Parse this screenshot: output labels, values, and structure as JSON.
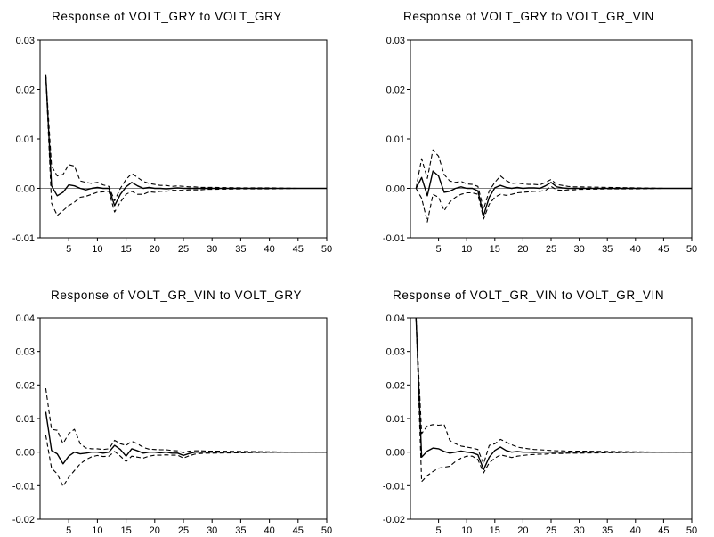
{
  "chart_data": [
    {
      "type": "line",
      "title": "Response of VOLT_GRY to VOLT_GRY",
      "ylim": [
        -0.01,
        0.03
      ],
      "yticks": [
        -0.01,
        0.0,
        0.01,
        0.02,
        0.03
      ],
      "ytick_labels": [
        "-0.01",
        "0.00",
        "0.01",
        "0.02",
        "0.03"
      ],
      "xlim": [
        0,
        50
      ],
      "xticks": [
        5,
        10,
        15,
        20,
        25,
        30,
        35,
        40,
        45,
        50
      ],
      "grid": false,
      "series": [
        {
          "role": "response",
          "style": "solid",
          "x": [
            1,
            2,
            3,
            4,
            5,
            6,
            7,
            8,
            9,
            10,
            11,
            12,
            13,
            14,
            15,
            16,
            17,
            18,
            19,
            20,
            21,
            22,
            23,
            24,
            25,
            26,
            27,
            28,
            29,
            30,
            35,
            40,
            45,
            50
          ],
          "y": [
            0.023,
            0.0005,
            -0.0015,
            -0.0008,
            0.0007,
            0.0005,
            0.0,
            -0.0003,
            0.0,
            0.0002,
            0.0,
            0.0,
            -0.0035,
            -0.0012,
            0.0003,
            0.0012,
            0.0005,
            0.0,
            0.0002,
            0.0,
            0.0,
            -0.0001,
            0.0,
            0.0001,
            0.0,
            0.0,
            0.0,
            0.0,
            0.0,
            0.0,
            0.0,
            0.0,
            0.0,
            0.0
          ]
        },
        {
          "role": "upper band",
          "style": "dashed",
          "x": [
            1,
            2,
            3,
            4,
            5,
            6,
            7,
            8,
            9,
            10,
            11,
            12,
            13,
            14,
            15,
            16,
            17,
            18,
            19,
            20,
            21,
            22,
            23,
            24,
            25,
            26,
            27,
            28,
            29,
            30,
            35,
            40,
            45,
            50
          ],
          "y": [
            0.023,
            0.0045,
            0.0025,
            0.0028,
            0.0048,
            0.0045,
            0.0015,
            0.0012,
            0.001,
            0.0012,
            0.0007,
            0.0004,
            -0.0025,
            0.0,
            0.0018,
            0.003,
            0.0022,
            0.0014,
            0.001,
            0.0008,
            0.0006,
            0.0006,
            0.0004,
            0.0005,
            0.0004,
            0.0003,
            0.0003,
            0.0002,
            0.0002,
            0.0002,
            0.0001,
            0.0001,
            0.0,
            0.0
          ]
        },
        {
          "role": "lower band",
          "style": "dashed",
          "x": [
            1,
            2,
            3,
            4,
            5,
            6,
            7,
            8,
            9,
            10,
            11,
            12,
            13,
            14,
            15,
            16,
            17,
            18,
            19,
            20,
            21,
            22,
            23,
            24,
            25,
            26,
            27,
            28,
            29,
            30,
            35,
            40,
            45,
            50
          ],
          "y": [
            0.023,
            -0.003,
            -0.0055,
            -0.0045,
            -0.0035,
            -0.0028,
            -0.0018,
            -0.0016,
            -0.0012,
            -0.0008,
            -0.0007,
            -0.0006,
            -0.0048,
            -0.0028,
            -0.0012,
            -0.0006,
            -0.0012,
            -0.0012,
            -0.0007,
            -0.0008,
            -0.0006,
            -0.0006,
            -0.0004,
            -0.0004,
            -0.0004,
            -0.0003,
            -0.0003,
            -0.0003,
            -0.0002,
            -0.0002,
            -0.0001,
            -0.0001,
            0.0,
            0.0
          ]
        }
      ]
    },
    {
      "type": "line",
      "title": "Response of VOLT_GRY to VOLT_GR_VIN",
      "ylim": [
        -0.01,
        0.03
      ],
      "yticks": [
        -0.01,
        0.0,
        0.01,
        0.02,
        0.03
      ],
      "ytick_labels": [
        "-0.01",
        "0.00",
        "0.01",
        "0.02",
        "0.03"
      ],
      "xlim": [
        0,
        50
      ],
      "xticks": [
        5,
        10,
        15,
        20,
        25,
        30,
        35,
        40,
        45,
        50
      ],
      "grid": false,
      "series": [
        {
          "role": "response",
          "style": "solid",
          "x": [
            1,
            2,
            3,
            4,
            5,
            6,
            7,
            8,
            9,
            10,
            11,
            12,
            13,
            14,
            15,
            16,
            17,
            18,
            19,
            20,
            21,
            22,
            23,
            24,
            25,
            26,
            27,
            28,
            29,
            30,
            35,
            40,
            45,
            50
          ],
          "y": [
            0.0,
            0.0022,
            -0.0015,
            0.0035,
            0.0025,
            -0.0008,
            -0.0006,
            0.0,
            0.0003,
            0.0,
            0.0,
            -0.0005,
            -0.0055,
            -0.0018,
            0.0001,
            0.0006,
            0.0002,
            0.0,
            0.0002,
            0.0,
            0.0001,
            0.0001,
            0.0,
            0.0005,
            0.0012,
            0.0003,
            0.0001,
            0.0,
            0.0,
            0.0,
            0.0,
            0.0,
            0.0,
            0.0
          ]
        },
        {
          "role": "upper band",
          "style": "dashed",
          "x": [
            1,
            2,
            3,
            4,
            5,
            6,
            7,
            8,
            9,
            10,
            11,
            12,
            13,
            14,
            15,
            16,
            17,
            18,
            19,
            20,
            21,
            22,
            23,
            24,
            25,
            26,
            27,
            28,
            29,
            30,
            35,
            40,
            45,
            50
          ],
          "y": [
            0.0,
            0.006,
            0.002,
            0.0078,
            0.0065,
            0.0028,
            0.0015,
            0.0012,
            0.0014,
            0.0009,
            0.0008,
            0.0004,
            -0.0042,
            -0.0005,
            0.0012,
            0.0025,
            0.0016,
            0.001,
            0.0011,
            0.0009,
            0.0008,
            0.0008,
            0.0007,
            0.0012,
            0.0018,
            0.0008,
            0.0006,
            0.0004,
            0.0003,
            0.0003,
            0.0002,
            0.0001,
            0.0,
            0.0
          ]
        },
        {
          "role": "lower band",
          "style": "dashed",
          "x": [
            1,
            2,
            3,
            4,
            5,
            6,
            7,
            8,
            9,
            10,
            11,
            12,
            13,
            14,
            15,
            16,
            17,
            18,
            19,
            20,
            21,
            22,
            23,
            24,
            25,
            26,
            27,
            28,
            29,
            30,
            35,
            40,
            45,
            50
          ],
          "y": [
            0.0,
            -0.002,
            -0.0068,
            -0.0012,
            -0.0018,
            -0.0045,
            -0.0028,
            -0.0018,
            -0.0012,
            -0.0009,
            -0.0009,
            -0.0012,
            -0.0062,
            -0.0032,
            -0.0018,
            -0.0012,
            -0.0014,
            -0.0012,
            -0.0009,
            -0.0008,
            -0.0007,
            -0.0006,
            -0.0006,
            -0.0004,
            0.0004,
            -0.0003,
            -0.0004,
            -0.0003,
            -0.0003,
            -0.0002,
            -0.0001,
            -0.0001,
            0.0,
            0.0
          ]
        }
      ]
    },
    {
      "type": "line",
      "title": "Response of VOLT_GR_VIN to VOLT_GRY",
      "ylim": [
        -0.02,
        0.04
      ],
      "yticks": [
        -0.02,
        -0.01,
        0.0,
        0.01,
        0.02,
        0.03,
        0.04
      ],
      "ytick_labels": [
        "-0.02",
        "-0.01",
        "0.00",
        "0.01",
        "0.02",
        "0.03",
        "0.04"
      ],
      "xlim": [
        0,
        50
      ],
      "xticks": [
        5,
        10,
        15,
        20,
        25,
        30,
        35,
        40,
        45,
        50
      ],
      "grid": false,
      "series": [
        {
          "role": "response",
          "style": "solid",
          "x": [
            1,
            2,
            3,
            4,
            5,
            6,
            7,
            8,
            9,
            10,
            11,
            12,
            13,
            14,
            15,
            16,
            17,
            18,
            19,
            20,
            21,
            22,
            23,
            24,
            25,
            26,
            27,
            28,
            29,
            30,
            35,
            40,
            45,
            50
          ],
          "y": [
            0.012,
            0.0005,
            -0.0005,
            -0.0035,
            -0.0012,
            0.0,
            -0.0005,
            -0.0003,
            0.0,
            0.0,
            -0.0003,
            0.0,
            0.002,
            0.0008,
            -0.0012,
            0.001,
            0.0004,
            -0.0003,
            0.0,
            0.0,
            -0.0002,
            0.0,
            -0.0003,
            -0.0003,
            -0.001,
            -0.0004,
            0.0,
            0.0,
            0.0,
            0.0,
            0.0,
            0.0,
            0.0,
            0.0
          ]
        },
        {
          "role": "upper band",
          "style": "dashed",
          "x": [
            1,
            2,
            3,
            4,
            5,
            6,
            7,
            8,
            9,
            10,
            11,
            12,
            13,
            14,
            15,
            16,
            17,
            18,
            19,
            20,
            21,
            22,
            23,
            24,
            25,
            26,
            27,
            28,
            29,
            30,
            35,
            40,
            45,
            50
          ],
          "y": [
            0.019,
            0.0068,
            0.0065,
            0.0025,
            0.0055,
            0.0068,
            0.0025,
            0.0012,
            0.001,
            0.001,
            0.0008,
            0.001,
            0.0035,
            0.0025,
            0.002,
            0.0032,
            0.0025,
            0.0014,
            0.0009,
            0.0008,
            0.0007,
            0.0007,
            0.0005,
            0.0004,
            -0.0002,
            0.0003,
            0.0004,
            0.0004,
            0.0003,
            0.0003,
            0.0002,
            0.0001,
            0.0,
            0.0
          ]
        },
        {
          "role": "lower band",
          "style": "dashed",
          "x": [
            1,
            2,
            3,
            4,
            5,
            6,
            7,
            8,
            9,
            10,
            11,
            12,
            13,
            14,
            15,
            16,
            17,
            18,
            19,
            20,
            21,
            22,
            23,
            24,
            25,
            26,
            27,
            28,
            29,
            30,
            35,
            40,
            45,
            50
          ],
          "y": [
            0.005,
            -0.0048,
            -0.0065,
            -0.0102,
            -0.0075,
            -0.0055,
            -0.0035,
            -0.0022,
            -0.0014,
            -0.001,
            -0.0013,
            -0.0012,
            0.0002,
            -0.0012,
            -0.0028,
            -0.0012,
            -0.0015,
            -0.0018,
            -0.0012,
            -0.0009,
            -0.0009,
            -0.0008,
            -0.0009,
            -0.0009,
            -0.0018,
            -0.0011,
            -0.0006,
            -0.0004,
            -0.0003,
            -0.0003,
            -0.0002,
            -0.0001,
            0.0,
            0.0
          ]
        }
      ]
    },
    {
      "type": "line",
      "title": "Response of VOLT_GR_VIN to VOLT_GR_VIN",
      "ylim": [
        -0.02,
        0.04
      ],
      "yticks": [
        -0.02,
        -0.01,
        0.0,
        0.01,
        0.02,
        0.03,
        0.04
      ],
      "ytick_labels": [
        "-0.02",
        "-0.01",
        "0.00",
        "0.01",
        "0.02",
        "0.03",
        "0.04"
      ],
      "xlim": [
        0,
        50
      ],
      "xticks": [
        5,
        10,
        15,
        20,
        25,
        30,
        35,
        40,
        45,
        50
      ],
      "grid": false,
      "series": [
        {
          "role": "response",
          "style": "solid",
          "x": [
            1,
            2,
            3,
            4,
            5,
            6,
            7,
            8,
            9,
            10,
            11,
            12,
            13,
            14,
            15,
            16,
            17,
            18,
            19,
            20,
            21,
            22,
            23,
            24,
            25,
            26,
            27,
            28,
            29,
            30,
            35,
            40,
            45,
            50
          ],
          "y": [
            0.04,
            -0.0015,
            0.0003,
            0.0012,
            0.001,
            0.0002,
            -0.0003,
            0.0,
            0.0003,
            0.0,
            -0.0002,
            -0.0008,
            -0.0052,
            -0.0015,
            0.0005,
            0.0015,
            0.0005,
            0.0,
            0.0002,
            0.0,
            0.0,
            -0.0001,
            0.0,
            0.0,
            0.0,
            0.0,
            0.0,
            0.0,
            0.0,
            0.0,
            0.0,
            0.0,
            0.0,
            0.0
          ]
        },
        {
          "role": "upper band",
          "style": "dashed",
          "x": [
            1,
            2,
            3,
            4,
            5,
            6,
            7,
            8,
            9,
            10,
            11,
            12,
            13,
            14,
            15,
            16,
            17,
            18,
            19,
            20,
            21,
            22,
            23,
            24,
            25,
            26,
            27,
            28,
            29,
            30,
            35,
            40,
            45,
            50
          ],
          "y": [
            0.04,
            0.0055,
            0.0078,
            0.0082,
            0.008,
            0.0082,
            0.0035,
            0.0025,
            0.0018,
            0.0015,
            0.0012,
            0.0008,
            -0.0035,
            0.002,
            0.0025,
            0.0038,
            0.003,
            0.0022,
            0.0015,
            0.0012,
            0.001,
            0.0008,
            0.0007,
            0.0006,
            0.0005,
            0.0004,
            0.0004,
            0.0003,
            0.0003,
            0.0003,
            0.0002,
            0.0001,
            0.0,
            0.0
          ]
        },
        {
          "role": "lower band",
          "style": "dashed",
          "x": [
            1,
            2,
            3,
            4,
            5,
            6,
            7,
            8,
            9,
            10,
            11,
            12,
            13,
            14,
            15,
            16,
            17,
            18,
            19,
            20,
            21,
            22,
            23,
            24,
            25,
            26,
            27,
            28,
            29,
            30,
            35,
            40,
            45,
            50
          ],
          "y": [
            0.04,
            -0.0088,
            -0.007,
            -0.0058,
            -0.0048,
            -0.0045,
            -0.0042,
            -0.0028,
            -0.0018,
            -0.0012,
            -0.0012,
            -0.0022,
            -0.0062,
            -0.0032,
            -0.0018,
            -0.0008,
            -0.0012,
            -0.0016,
            -0.0012,
            -0.001,
            -0.0008,
            -0.0007,
            -0.0006,
            -0.0006,
            -0.0004,
            -0.0004,
            -0.0004,
            -0.0003,
            -0.0003,
            -0.0003,
            -0.0002,
            -0.0001,
            0.0,
            0.0
          ]
        }
      ]
    }
  ]
}
